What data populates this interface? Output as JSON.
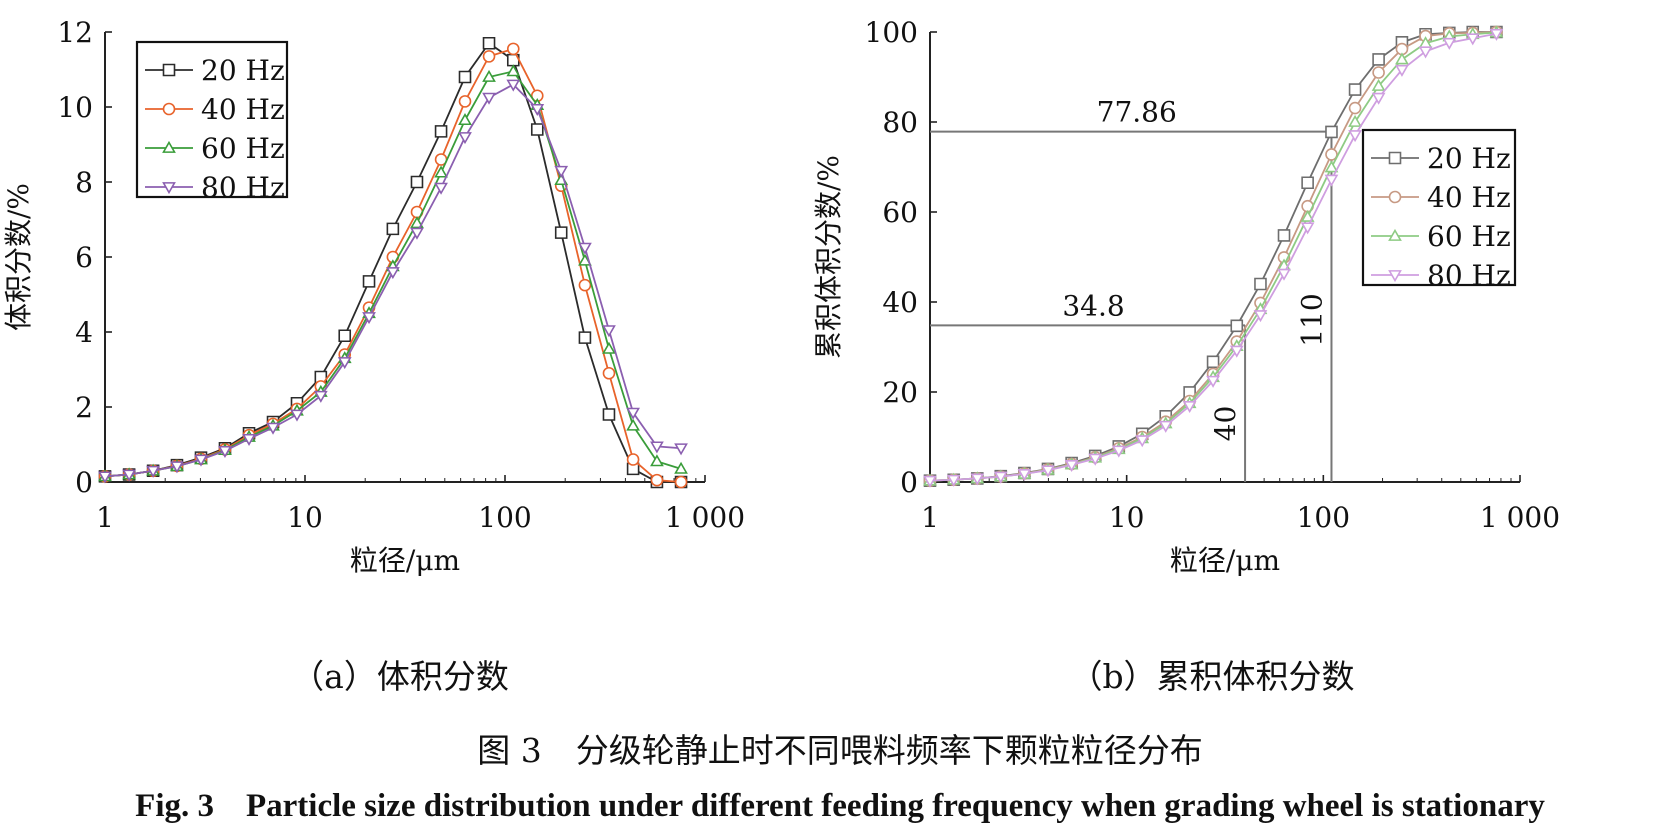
{
  "chart_data": [
    {
      "type": "line",
      "subtitle": "（a）体积分数",
      "xlabel": "粒径/μm",
      "ylabel": "体积分数/%",
      "xscale": "log",
      "xlim": [
        1,
        1000
      ],
      "ylim": [
        0,
        12
      ],
      "xticks": [
        1,
        10,
        100,
        1000
      ],
      "xtick_labels": [
        "1",
        "10",
        "100",
        "1 000"
      ],
      "yticks": [
        0,
        2,
        4,
        6,
        8,
        10,
        12
      ],
      "ytick_labels": [
        "0",
        "2",
        "4",
        "6",
        "8",
        "10",
        "12"
      ],
      "grid": false,
      "legend_position": "top-left",
      "x": [
        1,
        1.32,
        1.74,
        2.29,
        3.02,
        3.98,
        5.25,
        6.92,
        9.12,
        12.0,
        15.8,
        20.9,
        27.5,
        36.3,
        47.9,
        63.1,
        83.2,
        110,
        145,
        191,
        251,
        331,
        437,
        575,
        759
      ],
      "series": [
        {
          "name": "20 Hz",
          "marker": "square",
          "color": "#2b2b2b",
          "values": [
            0.15,
            0.2,
            0.3,
            0.45,
            0.65,
            0.9,
            1.3,
            1.6,
            2.1,
            2.8,
            3.9,
            5.35,
            6.75,
            8.0,
            9.35,
            10.8,
            11.7,
            11.25,
            9.4,
            6.65,
            3.85,
            1.8,
            0.35,
            0,
            0
          ]
        },
        {
          "name": "40 Hz",
          "marker": "circle",
          "color": "#e8632b",
          "values": [
            0.15,
            0.2,
            0.3,
            0.43,
            0.62,
            0.87,
            1.25,
            1.55,
            1.95,
            2.55,
            3.4,
            4.65,
            6.0,
            7.2,
            8.6,
            10.15,
            11.35,
            11.55,
            10.3,
            7.9,
            5.25,
            2.9,
            0.6,
            0.05,
            0
          ]
        },
        {
          "name": "60 Hz",
          "marker": "triangle-up",
          "color": "#3a9d3a",
          "values": [
            0.15,
            0.2,
            0.3,
            0.42,
            0.6,
            0.85,
            1.2,
            1.5,
            1.9,
            2.4,
            3.3,
            4.5,
            5.75,
            6.9,
            8.25,
            9.65,
            10.8,
            10.95,
            10.05,
            8.05,
            5.9,
            3.55,
            1.5,
            0.55,
            0.35
          ]
        },
        {
          "name": "80 Hz",
          "marker": "triangle-down",
          "color": "#8b5fb0",
          "values": [
            0.15,
            0.2,
            0.3,
            0.42,
            0.6,
            0.83,
            1.15,
            1.45,
            1.8,
            2.3,
            3.2,
            4.4,
            5.6,
            6.65,
            7.85,
            9.2,
            10.25,
            10.6,
            9.95,
            8.3,
            6.25,
            4.05,
            1.85,
            0.95,
            0.9
          ]
        }
      ]
    },
    {
      "type": "line",
      "subtitle": "（b）累积体积分数",
      "xlabel": "粒径/μm",
      "ylabel": "累积体积分数/%",
      "xscale": "log",
      "xlim": [
        1,
        1000
      ],
      "ylim": [
        0,
        100
      ],
      "xticks": [
        1,
        10,
        100,
        1000
      ],
      "xtick_labels": [
        "1",
        "10",
        "100",
        "1 000"
      ],
      "yticks": [
        0,
        20,
        40,
        60,
        80,
        100
      ],
      "ytick_labels": [
        "0",
        "20",
        "40",
        "60",
        "80",
        "100"
      ],
      "grid": false,
      "legend_position": "right",
      "x": [
        1,
        1.32,
        1.74,
        2.29,
        3.02,
        3.98,
        5.25,
        6.92,
        9.12,
        12.0,
        15.8,
        20.9,
        27.5,
        36.3,
        47.9,
        63.1,
        83.2,
        110,
        145,
        191,
        251,
        331,
        437,
        575,
        759
      ],
      "series": [
        {
          "name": "20 Hz",
          "marker": "square",
          "color": "#6e6e6e",
          "values": [
            0.3,
            0.5,
            0.8,
            1.3,
            2.0,
            2.9,
            4.2,
            5.8,
            7.9,
            10.7,
            14.6,
            19.9,
            26.7,
            34.7,
            44.0,
            54.8,
            66.5,
            77.8,
            87.2,
            93.9,
            97.7,
            99.5,
            99.8,
            100,
            100
          ]
        },
        {
          "name": "40 Hz",
          "marker": "circle",
          "color": "#c79a84",
          "values": [
            0.3,
            0.5,
            0.8,
            1.2,
            1.9,
            2.8,
            4.0,
            5.5,
            7.5,
            10.0,
            13.4,
            18.0,
            24.0,
            31.2,
            39.8,
            49.9,
            61.3,
            72.8,
            83.1,
            91.0,
            96.2,
            99.1,
            99.7,
            99.8,
            100
          ]
        },
        {
          "name": "60 Hz",
          "marker": "triangle-up",
          "color": "#8ecb84",
          "values": [
            0.3,
            0.5,
            0.8,
            1.2,
            1.8,
            2.7,
            3.9,
            5.4,
            7.3,
            9.7,
            13.0,
            17.5,
            23.3,
            30.2,
            38.4,
            48.1,
            58.9,
            69.9,
            80.0,
            88.0,
            93.9,
            97.5,
            99.0,
            99.5,
            99.9
          ]
        },
        {
          "name": "80 Hz",
          "marker": "triangle-down",
          "color": "#cf9ee0",
          "values": [
            0.3,
            0.5,
            0.8,
            1.2,
            1.8,
            2.6,
            3.8,
            5.2,
            7.0,
            9.3,
            12.5,
            16.9,
            22.5,
            29.2,
            37.1,
            46.3,
            56.6,
            67.2,
            77.1,
            85.4,
            91.6,
            95.7,
            97.6,
            98.6,
            99.6
          ]
        }
      ],
      "annotations": [
        {
          "text": "77.86",
          "x": 110,
          "y": 77.86
        },
        {
          "text": "34.8",
          "x": 40,
          "y": 34.8
        },
        {
          "text": "110",
          "x": 110
        },
        {
          "text": "40",
          "x": 40
        }
      ]
    }
  ],
  "caption_zh": {
    "label": "图 3",
    "text": "分级轮静止时不同喂料频率下颗粒粒径分布"
  },
  "caption_en": {
    "label": "Fig. 3",
    "text": "Particle size distribution under different feeding frequency when grading wheel is stationary"
  }
}
